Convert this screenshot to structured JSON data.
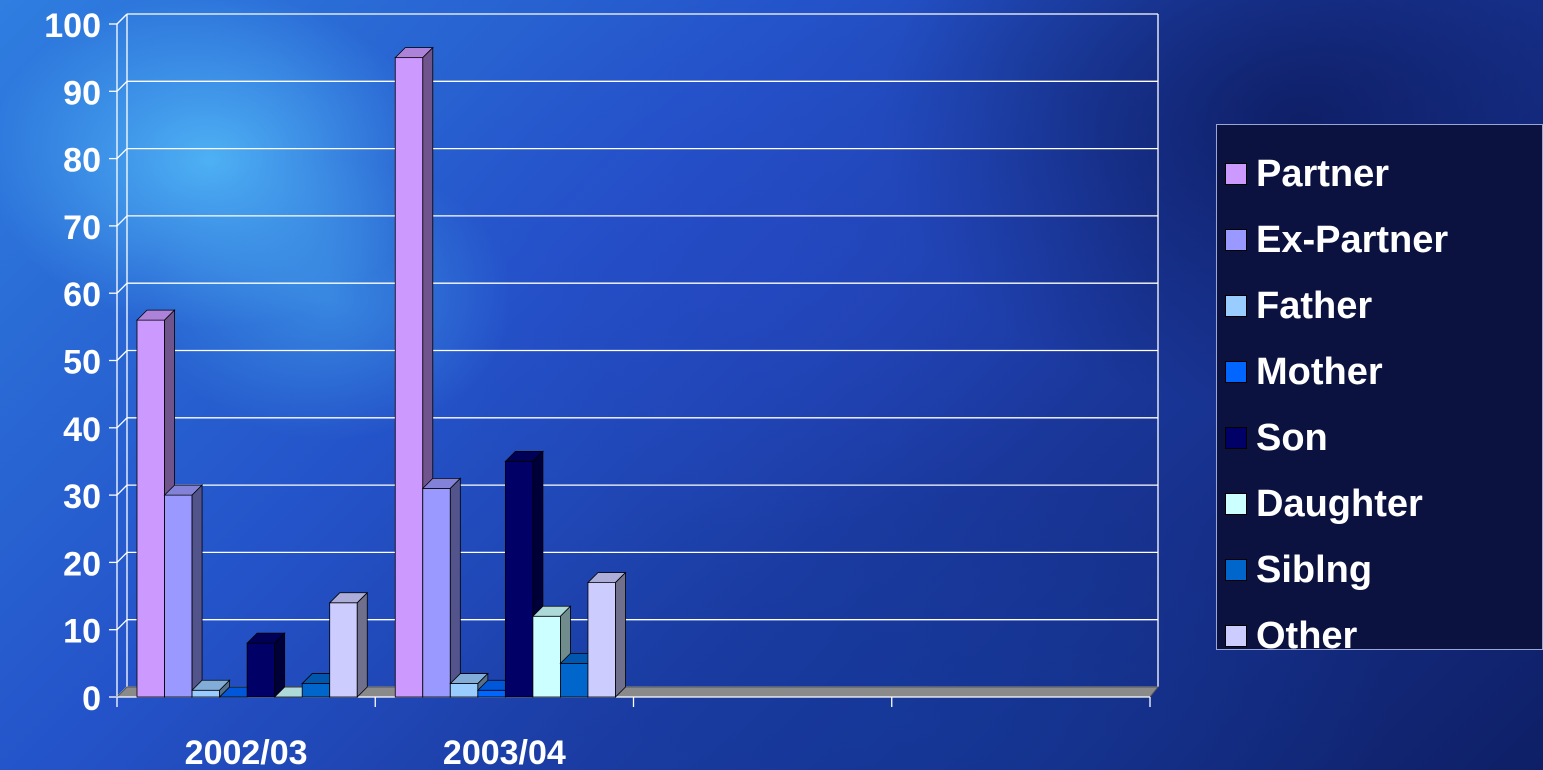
{
  "chart_data": {
    "type": "bar",
    "categories": [
      "2002/03",
      "2003/04",
      "",
      ""
    ],
    "series": [
      {
        "name": "Partner",
        "color": "#cc99ff",
        "values": [
          56,
          95,
          null,
          null
        ]
      },
      {
        "name": "Ex-Partner",
        "color": "#9999ff",
        "values": [
          30,
          31,
          null,
          null
        ]
      },
      {
        "name": "Father",
        "color": "#99ccff",
        "values": [
          1,
          2,
          null,
          null
        ]
      },
      {
        "name": "Mother",
        "color": "#0066ff",
        "values": [
          0,
          1,
          null,
          null
        ]
      },
      {
        "name": "Son",
        "color": "#000066",
        "values": [
          8,
          35,
          null,
          null
        ]
      },
      {
        "name": "Daughter",
        "color": "#ccffff",
        "values": [
          0,
          12,
          null,
          null
        ]
      },
      {
        "name": "Siblng",
        "color": "#0066cc",
        "values": [
          2,
          5,
          null,
          null
        ]
      },
      {
        "name": "Other",
        "color": "#ccccff",
        "values": [
          14,
          17,
          null,
          null
        ]
      }
    ],
    "ylim": [
      0,
      100
    ],
    "yticks": [
      "0",
      "10",
      "20",
      "30",
      "40",
      "50",
      "60",
      "70",
      "80",
      "90",
      "100"
    ],
    "title": "",
    "xlabel": "",
    "ylabel": "",
    "grid": true,
    "legend_position": "right",
    "three_d": true
  }
}
